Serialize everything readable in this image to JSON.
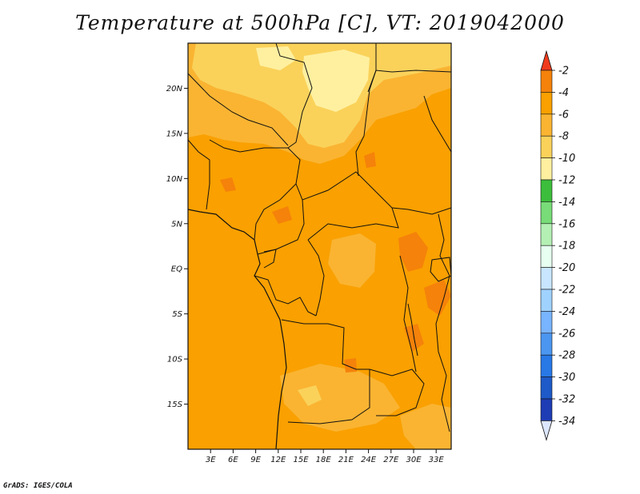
{
  "title": "Temperature at 500hPa [C], VT: 2019042000",
  "credit": "GrADS: IGES/COLA",
  "map": {
    "lat_range": [
      -20,
      25
    ],
    "lon_range": [
      0,
      35
    ],
    "lat_ticks": [
      {
        "value": 20,
        "label": "20N"
      },
      {
        "value": 15,
        "label": "15N"
      },
      {
        "value": 10,
        "label": "10N"
      },
      {
        "value": 5,
        "label": "5N"
      },
      {
        "value": 0,
        "label": "EQ"
      },
      {
        "value": -5,
        "label": "5S"
      },
      {
        "value": -10,
        "label": "10S"
      },
      {
        "value": -15,
        "label": "15S"
      }
    ],
    "lon_ticks": [
      {
        "value": 3,
        "label": "3E"
      },
      {
        "value": 6,
        "label": "6E"
      },
      {
        "value": 9,
        "label": "9E"
      },
      {
        "value": 12,
        "label": "12E"
      },
      {
        "value": 15,
        "label": "15E"
      },
      {
        "value": 18,
        "label": "18E"
      },
      {
        "value": 21,
        "label": "21E"
      },
      {
        "value": 24,
        "label": "24E"
      },
      {
        "value": 27,
        "label": "27E"
      },
      {
        "value": 30,
        "label": "30E"
      },
      {
        "value": 33,
        "label": "33E"
      }
    ]
  },
  "colorbar": {
    "levels": [
      "-2",
      "-4",
      "-6",
      "-8",
      "-10",
      "-12",
      "-14",
      "-16",
      "-18",
      "-20",
      "-22",
      "-24",
      "-26",
      "-28",
      "-30",
      "-32",
      "-34"
    ],
    "colors": [
      "#f0501e",
      "#f5820a",
      "#faa000",
      "#fab432",
      "#fad25a",
      "#fff0a0",
      "#3cbe3c",
      "#78dc78",
      "#b4f0b4",
      "#e6fff0",
      "#c8e6ff",
      "#a0d2ff",
      "#78b4ff",
      "#4b96f0",
      "#2878e6",
      "#1e5ac8",
      "#1e3cb4",
      "#0a1478"
    ],
    "top_arrow_color": "#f03c1e",
    "bottom_arrow_color": "#dce6ff"
  },
  "palette": {
    "ocean": "#faa000",
    "land_base": "#faa000",
    "warm_band": "#fab432",
    "cool_band": "#fad25a",
    "coolest": "#fff0a0",
    "hot_spot": "#f5820a"
  }
}
